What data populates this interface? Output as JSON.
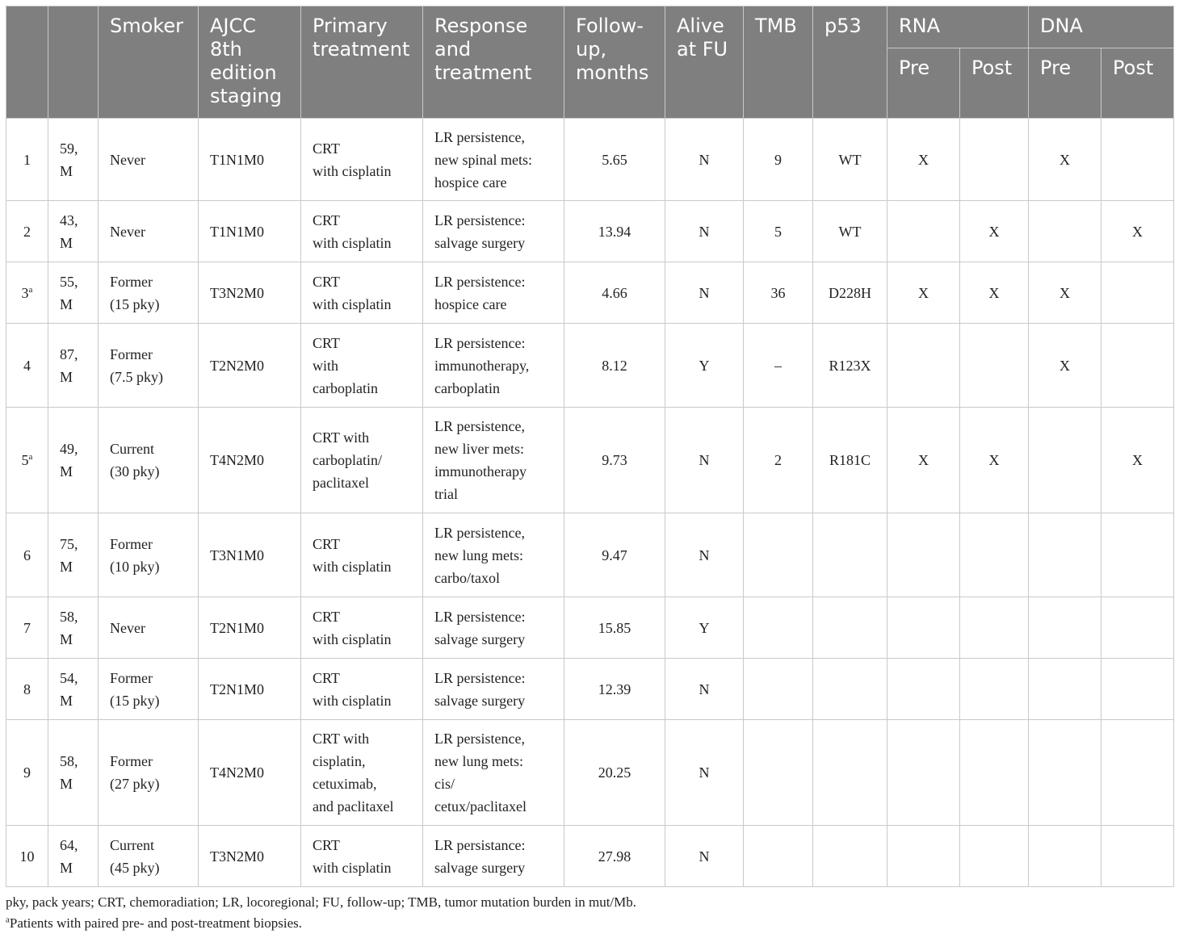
{
  "headers": {
    "idx": "",
    "age_sex": "",
    "smoker": "Smoker",
    "ajcc": "AJCC 8th edition staging",
    "primary": "Primary treatment",
    "response": "Response and treatment",
    "followup": "Follow-up, months",
    "alive": "Alive at FU",
    "tmb": "TMB",
    "p53": "p53",
    "rna": "RNA",
    "dna": "DNA",
    "rna_pre": "Pre",
    "rna_post": "Post",
    "dna_pre": "Pre",
    "dna_post": "Post"
  },
  "rows": [
    {
      "id": "1",
      "sup": "",
      "age_sex": [
        "59,",
        "M"
      ],
      "smoker": [
        "Never"
      ],
      "stage": "T1N1M0",
      "primary": [
        "CRT",
        "with cisplatin"
      ],
      "response": [
        "LR persistence,",
        "new spinal mets:",
        "hospice care"
      ],
      "followup": "5.65",
      "alive": "N",
      "tmb": "9",
      "p53": "WT",
      "rna_pre": "X",
      "rna_post": "",
      "dna_pre": "X",
      "dna_post": ""
    },
    {
      "id": "2",
      "sup": "",
      "age_sex": [
        "43,",
        "M"
      ],
      "smoker": [
        "Never"
      ],
      "stage": "T1N1M0",
      "primary": [
        "CRT",
        "with cisplatin"
      ],
      "response": [
        "LR persistence:",
        "salvage surgery"
      ],
      "followup": "13.94",
      "alive": "N",
      "tmb": "5",
      "p53": "WT",
      "rna_pre": "",
      "rna_post": "X",
      "dna_pre": "",
      "dna_post": "X"
    },
    {
      "id": "3",
      "sup": "a",
      "age_sex": [
        "55,",
        "M"
      ],
      "smoker": [
        "Former",
        "(15 pky)"
      ],
      "stage": "T3N2M0",
      "primary": [
        "CRT",
        "with cisplatin"
      ],
      "response": [
        "LR persistence:",
        "hospice care"
      ],
      "followup": "4.66",
      "alive": "N",
      "tmb": "36",
      "p53": "D228H",
      "rna_pre": "X",
      "rna_post": "X",
      "dna_pre": "X",
      "dna_post": ""
    },
    {
      "id": "4",
      "sup": "",
      "age_sex": [
        "87,",
        "M"
      ],
      "smoker": [
        "Former",
        "(7.5 pky)"
      ],
      "stage": "T2N2M0",
      "primary": [
        "CRT",
        "with",
        "carboplatin"
      ],
      "response": [
        "LR persistence:",
        "immunotherapy,",
        "carboplatin"
      ],
      "followup": "8.12",
      "alive": "Y",
      "tmb": "–",
      "p53": "R123X",
      "rna_pre": "",
      "rna_post": "",
      "dna_pre": "X",
      "dna_post": ""
    },
    {
      "id": "5",
      "sup": "a",
      "age_sex": [
        "49,",
        "M"
      ],
      "smoker": [
        "Current",
        "(30 pky)"
      ],
      "stage": "T4N2M0",
      "primary": [
        "CRT with",
        "carboplatin/",
        "paclitaxel"
      ],
      "response": [
        "LR persistence,",
        "new liver mets:",
        "immunotherapy",
        "trial"
      ],
      "followup": "9.73",
      "alive": "N",
      "tmb": "2",
      "p53": "R181C",
      "rna_pre": "X",
      "rna_post": "X",
      "dna_pre": "",
      "dna_post": "X"
    },
    {
      "id": "6",
      "sup": "",
      "age_sex": [
        "75,",
        "M"
      ],
      "smoker": [
        "Former",
        "(10 pky)"
      ],
      "stage": "T3N1M0",
      "primary": [
        "CRT",
        "with cisplatin"
      ],
      "response": [
        "LR persistence,",
        "new lung mets:",
        "carbo/taxol"
      ],
      "followup": "9.47",
      "alive": "N",
      "tmb": "",
      "p53": "",
      "rna_pre": "",
      "rna_post": "",
      "dna_pre": "",
      "dna_post": ""
    },
    {
      "id": "7",
      "sup": "",
      "age_sex": [
        "58,",
        "M"
      ],
      "smoker": [
        "Never"
      ],
      "stage": "T2N1M0",
      "primary": [
        "CRT",
        "with cisplatin"
      ],
      "response": [
        "LR persistence:",
        "salvage surgery"
      ],
      "followup": "15.85",
      "alive": "Y",
      "tmb": "",
      "p53": "",
      "rna_pre": "",
      "rna_post": "",
      "dna_pre": "",
      "dna_post": ""
    },
    {
      "id": "8",
      "sup": "",
      "age_sex": [
        "54,",
        "M"
      ],
      "smoker": [
        "Former",
        "(15 pky)"
      ],
      "stage": "T2N1M0",
      "primary": [
        "CRT",
        "with cisplatin"
      ],
      "response": [
        "LR persistence:",
        "salvage surgery"
      ],
      "followup": "12.39",
      "alive": "N",
      "tmb": "",
      "p53": "",
      "rna_pre": "",
      "rna_post": "",
      "dna_pre": "",
      "dna_post": ""
    },
    {
      "id": "9",
      "sup": "",
      "age_sex": [
        "58,",
        "M"
      ],
      "smoker": [
        "Former",
        "(27 pky)"
      ],
      "stage": "T4N2M0",
      "primary": [
        "CRT with",
        "cisplatin,",
        "cetuximab,",
        "and paclitaxel"
      ],
      "response": [
        "LR persistence,",
        "new lung mets:",
        "cis/",
        "cetux/paclitaxel"
      ],
      "followup": "20.25",
      "alive": "N",
      "tmb": "",
      "p53": "",
      "rna_pre": "",
      "rna_post": "",
      "dna_pre": "",
      "dna_post": ""
    },
    {
      "id": "10",
      "sup": "",
      "age_sex": [
        "64,",
        "M"
      ],
      "smoker": [
        "Current",
        "(45 pky)"
      ],
      "stage": "T3N2M0",
      "primary": [
        "CRT",
        "with cisplatin"
      ],
      "response": [
        "LR persistance:",
        "salvage surgery"
      ],
      "followup": "27.98",
      "alive": "N",
      "tmb": "",
      "p53": "",
      "rna_pre": "",
      "rna_post": "",
      "dna_pre": "",
      "dna_post": ""
    }
  ],
  "footnotes": {
    "abbrev": "pky, pack years; CRT, chemoradiation; LR, locoregional; FU, follow-up; TMB, tumor mutation burden in mut/Mb.",
    "a_mark": "a",
    "a_text": "Patients with paired pre- and post-treatment biopsies."
  }
}
